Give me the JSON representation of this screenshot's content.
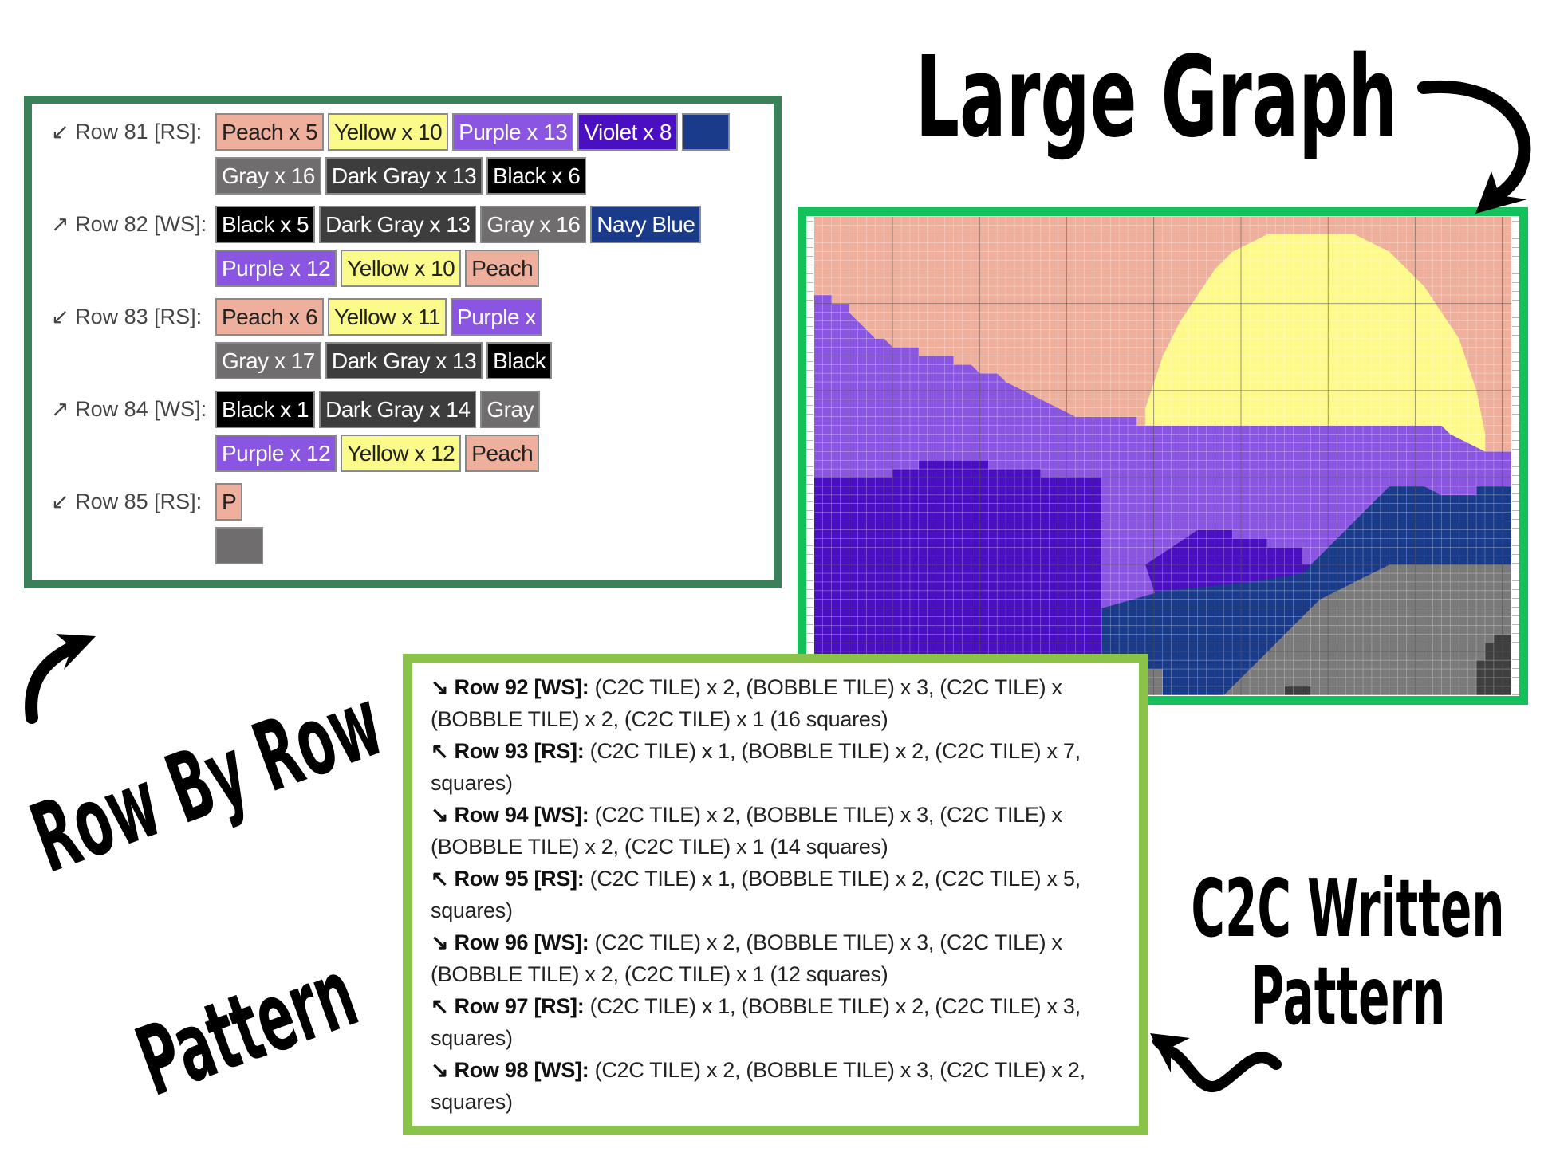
{
  "colors": {
    "Peach": {
      "bg": "#eeb09c",
      "fg": "#222222"
    },
    "Yellow": {
      "bg": "#fbfb8c",
      "fg": "#222222"
    },
    "Purple": {
      "bg": "#8a55e0",
      "fg": "#ffffff"
    },
    "Violet": {
      "bg": "#4a0fc0",
      "fg": "#ffffff"
    },
    "Navy Blue": {
      "bg": "#1a3a8a",
      "fg": "#ffffff"
    },
    "Gray": {
      "bg": "#6f6d6d",
      "fg": "#ffffff"
    },
    "Dark Gray": {
      "bg": "#3d3d3d",
      "fg": "#ffffff"
    },
    "Black": {
      "bg": "#000000",
      "fg": "#ffffff"
    },
    "row_panel_border": "#3a8059",
    "graph_panel_border": "#14c05a",
    "written_panel_border": "#8bc34a"
  },
  "row_pattern": {
    "rows": [
      {
        "label": "↙ Row 81 [RS]:",
        "lines": [
          [
            {
              "text": "Peach x 5",
              "color": "Peach"
            },
            {
              "text": "Yellow x 10",
              "color": "Yellow"
            },
            {
              "text": "Purple x 13",
              "color": "Purple"
            },
            {
              "text": "Violet x 8",
              "color": "Violet"
            },
            {
              "text": "",
              "color": "Navy Blue"
            }
          ],
          [
            {
              "text": "Gray x 16",
              "color": "Gray"
            },
            {
              "text": "Dark Gray x 13",
              "color": "Dark Gray"
            },
            {
              "text": "Black x 6",
              "color": "Black"
            }
          ]
        ]
      },
      {
        "label": "↗ Row 82 [WS]:",
        "lines": [
          [
            {
              "text": "Black x 5",
              "color": "Black"
            },
            {
              "text": "Dark Gray x 13",
              "color": "Dark Gray"
            },
            {
              "text": "Gray x 16",
              "color": "Gray"
            },
            {
              "text": "Navy Blue",
              "color": "Navy Blue"
            }
          ],
          [
            {
              "text": "Purple x 12",
              "color": "Purple"
            },
            {
              "text": "Yellow x 10",
              "color": "Yellow"
            },
            {
              "text": "Peach",
              "color": "Peach"
            }
          ]
        ]
      },
      {
        "label": "↙ Row 83 [RS]:",
        "lines": [
          [
            {
              "text": "Peach x 6",
              "color": "Peach"
            },
            {
              "text": "Yellow x 11",
              "color": "Yellow"
            },
            {
              "text": "Purple x",
              "color": "Purple"
            }
          ],
          [
            {
              "text": "Gray x 17",
              "color": "Gray"
            },
            {
              "text": "Dark Gray x 13",
              "color": "Dark Gray"
            },
            {
              "text": "Black",
              "color": "Black"
            }
          ]
        ]
      },
      {
        "label": "↗ Row 84 [WS]:",
        "lines": [
          [
            {
              "text": "Black x 1",
              "color": "Black"
            },
            {
              "text": "Dark Gray x 14",
              "color": "Dark Gray"
            },
            {
              "text": "Gray",
              "color": "Gray"
            }
          ],
          [
            {
              "text": "Purple x 12",
              "color": "Purple"
            },
            {
              "text": "Yellow x 12",
              "color": "Yellow"
            },
            {
              "text": "Peach",
              "color": "Peach"
            }
          ]
        ]
      },
      {
        "label": "↙ Row 85 [RS]:",
        "lines": [
          [
            {
              "text": "P",
              "color": "Peach"
            }
          ],
          [
            {
              "text": "",
              "color": "Gray"
            }
          ]
        ]
      }
    ]
  },
  "graph": {
    "palette": {
      "sky": "#eeb09c",
      "sun": "#fdf98a",
      "purple": "#8a55e0",
      "violet": "#4a0fc0",
      "navy": "#1a3a8a",
      "gray": "#7a7a7a",
      "dark_gray": "#3f3f3f"
    }
  },
  "written_pattern": {
    "lines": [
      {
        "bold": "↘ Row 92 [WS]:",
        "text": " (C2C TILE) x 2, (BOBBLE TILE) x 3, (C2C TILE) x"
      },
      {
        "bold": "",
        "text": "(BOBBLE TILE) x 2, (C2C TILE) x 1 (16 squares)"
      },
      {
        "bold": "↖ Row 93 [RS]:",
        "text": " (C2C TILE) x 1, (BOBBLE TILE) x 2, (C2C TILE) x 7,"
      },
      {
        "bold": "",
        "text": "squares)"
      },
      {
        "bold": "↘ Row 94 [WS]:",
        "text": " (C2C TILE) x 2, (BOBBLE TILE) x 3, (C2C TILE) x"
      },
      {
        "bold": "",
        "text": "(BOBBLE TILE) x 2, (C2C TILE) x 1 (14 squares)"
      },
      {
        "bold": "↖ Row 95 [RS]:",
        "text": " (C2C TILE) x 1, (BOBBLE TILE) x 2, (C2C TILE) x 5,"
      },
      {
        "bold": "",
        "text": "squares)"
      },
      {
        "bold": "↘ Row 96 [WS]:",
        "text": " (C2C TILE) x 2, (BOBBLE TILE) x 3, (C2C TILE) x"
      },
      {
        "bold": "",
        "text": "(BOBBLE TILE) x 2, (C2C TILE) x 1 (12 squares)"
      },
      {
        "bold": "↖ Row 97 [RS]:",
        "text": " (C2C TILE) x 1, (BOBBLE TILE) x 2, (C2C TILE) x 3,"
      },
      {
        "bold": "",
        "text": "squares)"
      },
      {
        "bold": "↘ Row 98 [WS]:",
        "text": " (C2C TILE) x 2, (BOBBLE TILE) x 3, (C2C TILE) x 2,"
      },
      {
        "bold": "",
        "text": "squares)"
      }
    ]
  },
  "callouts": {
    "large_graph": "Large Graph",
    "row_by_row_1": "Row By Row",
    "row_by_row_2": "Pattern",
    "c2c_written_1": "C2C Written",
    "c2c_written_2": "Pattern"
  }
}
